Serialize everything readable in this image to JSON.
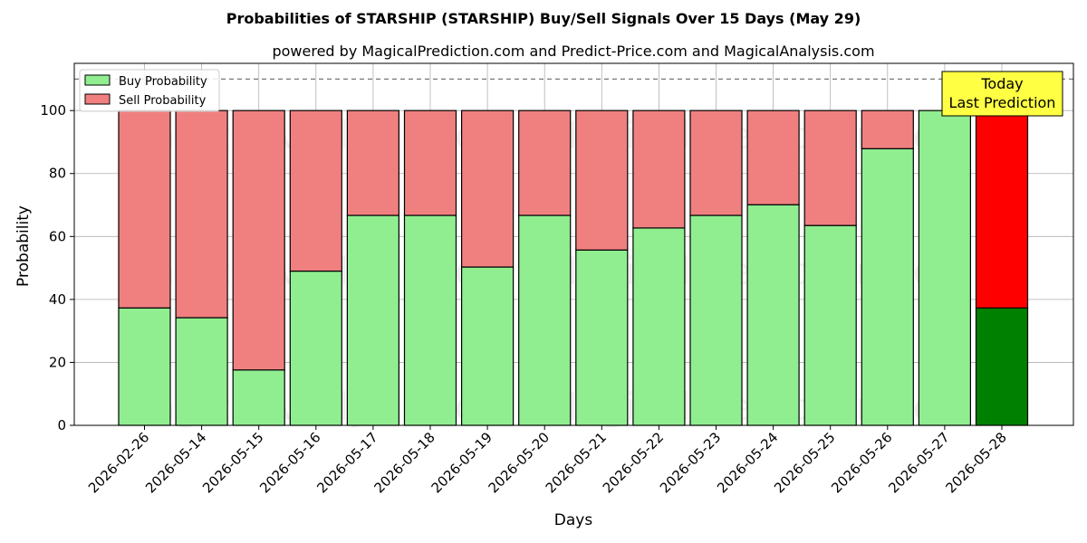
{
  "chart_data": {
    "type": "bar",
    "stacked": true,
    "title": "Probabilities of STARSHIP (STARSHIP) Buy/Sell Signals Over 15 Days (May 29)",
    "subtitle": "powered by MagicalPrediction.com and Predict-Price.com and MagicalAnalysis.com",
    "xlabel": "Days",
    "ylabel": "Probability",
    "ylim": [
      0,
      115
    ],
    "yticks": [
      0,
      20,
      40,
      60,
      80,
      100
    ],
    "grid": true,
    "legend_position": "top-left",
    "reference_line": 110,
    "categories": [
      "2026-02-26",
      "2026-05-14",
      "2026-05-15",
      "2026-05-16",
      "2026-05-17",
      "2026-05-18",
      "2026-05-19",
      "2026-05-20",
      "2026-05-21",
      "2026-05-22",
      "2026-05-23",
      "2026-05-24",
      "2026-05-25",
      "2026-05-26",
      "2026-05-27",
      "2026-05-28"
    ],
    "series": [
      {
        "name": "Buy Probability",
        "color": "#90ee90",
        "values": [
          37.3,
          34.2,
          17.6,
          49.0,
          66.7,
          66.7,
          50.3,
          66.7,
          55.7,
          62.7,
          66.7,
          70.1,
          63.5,
          87.9,
          100,
          37.3
        ]
      },
      {
        "name": "Sell Probability",
        "color": "#f08080",
        "values": [
          62.7,
          65.8,
          82.4,
          51.0,
          33.3,
          33.3,
          49.7,
          33.3,
          44.3,
          37.3,
          33.3,
          29.9,
          36.5,
          12.1,
          0,
          62.7
        ]
      }
    ],
    "highlight": {
      "index": 15,
      "buy_color": "#008000",
      "sell_color": "#ff0000"
    },
    "annotation": {
      "lines": [
        "Today",
        "Last Prediction"
      ],
      "color": "#ffff44"
    },
    "watermarks": [
      "MagicalAnalysis.com",
      "MagicalPrediction.com"
    ]
  }
}
